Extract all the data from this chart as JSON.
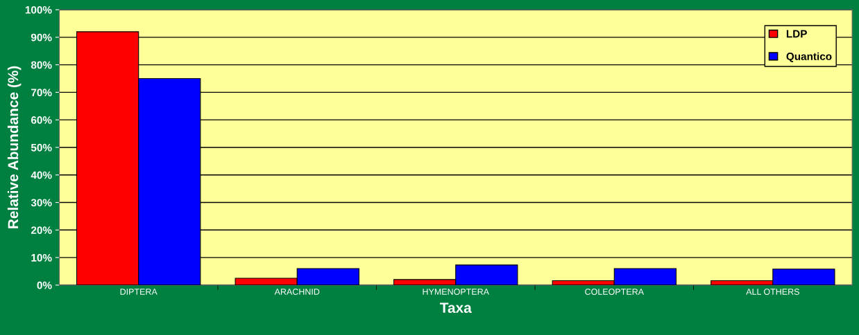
{
  "chart_data": {
    "type": "bar",
    "xlabel": "Taxa",
    "ylabel": "Relative Abundance (%)",
    "categories": [
      "DIPTERA",
      "ARACHNID",
      "HYMENOPTERA",
      "COLEOPTERA",
      "ALL OTHERS"
    ],
    "series": [
      {
        "name": "LDP",
        "color": "#ff0000",
        "values": [
          92,
          2.5,
          2,
          1.6,
          1.6
        ]
      },
      {
        "name": "Quantico",
        "color": "#0000ff",
        "values": [
          75,
          6,
          7.3,
          6,
          5.8
        ]
      }
    ],
    "ylim": [
      0,
      100
    ],
    "yticks": [
      {
        "value": 0,
        "label": "0%"
      },
      {
        "value": 10,
        "label": "10%"
      },
      {
        "value": 20,
        "label": "20%"
      },
      {
        "value": 30,
        "label": "30%"
      },
      {
        "value": 40,
        "label": "40%"
      },
      {
        "value": 50,
        "label": "50%"
      },
      {
        "value": 60,
        "label": "60%"
      },
      {
        "value": 70,
        "label": "70%"
      },
      {
        "value": 80,
        "label": "80%"
      },
      {
        "value": 90,
        "label": "90%"
      },
      {
        "value": 100,
        "label": "100%"
      }
    ],
    "grid": "y",
    "legend": "top right"
  }
}
